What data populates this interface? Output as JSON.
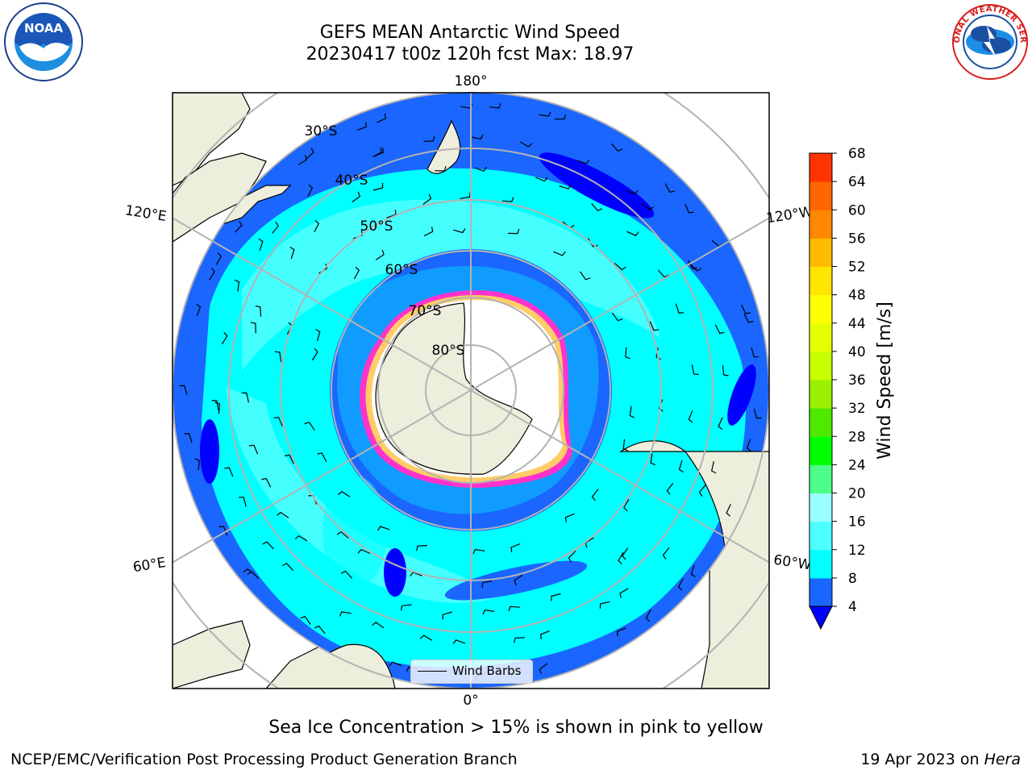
{
  "header": {
    "title": "GEFS MEAN Antarctic Wind Speed",
    "subtitle": "20230417 t00z 120h fcst   Max: 18.97"
  },
  "logos": {
    "left": "noaa-logo",
    "left_text": "NOAA",
    "right": "nws-logo",
    "right_text": "NATIONAL WEATHER SERVICE"
  },
  "map": {
    "projection": "south-polar-stereographic",
    "longitude_labels": [
      "180°",
      "120°E",
      "120°W",
      "60°E",
      "60°W",
      "0°"
    ],
    "latitude_labels": [
      "30°S",
      "40°S",
      "50°S",
      "60°S",
      "70°S",
      "80°S"
    ],
    "legend_label": "Wind Barbs"
  },
  "colorbar": {
    "label": "Wind Speed [m/s]",
    "ticks": [
      "4",
      "8",
      "12",
      "16",
      "20",
      "24",
      "28",
      "32",
      "36",
      "40",
      "44",
      "48",
      "52",
      "56",
      "60",
      "64",
      "68"
    ],
    "colors": [
      "#1a66ff",
      "#00ffff",
      "#4dffff",
      "#99ffff",
      "#4dff88",
      "#00ff00",
      "#4dea00",
      "#99f000",
      "#c8ff00",
      "#e6ff00",
      "#ffff00",
      "#ffe600",
      "#ffbb00",
      "#ff8800",
      "#ff6600",
      "#ff3300",
      "#ff0000"
    ],
    "under_color": "#0000ff"
  },
  "captions": {
    "sea_ice_note": "Sea Ice Concentration > 15% is shown in pink to yellow",
    "footer_left": "NCEP/EMC/Verification Post Processing Product Generation Branch",
    "footer_date": "19 Apr 2023 on ",
    "footer_host": "Hera"
  }
}
